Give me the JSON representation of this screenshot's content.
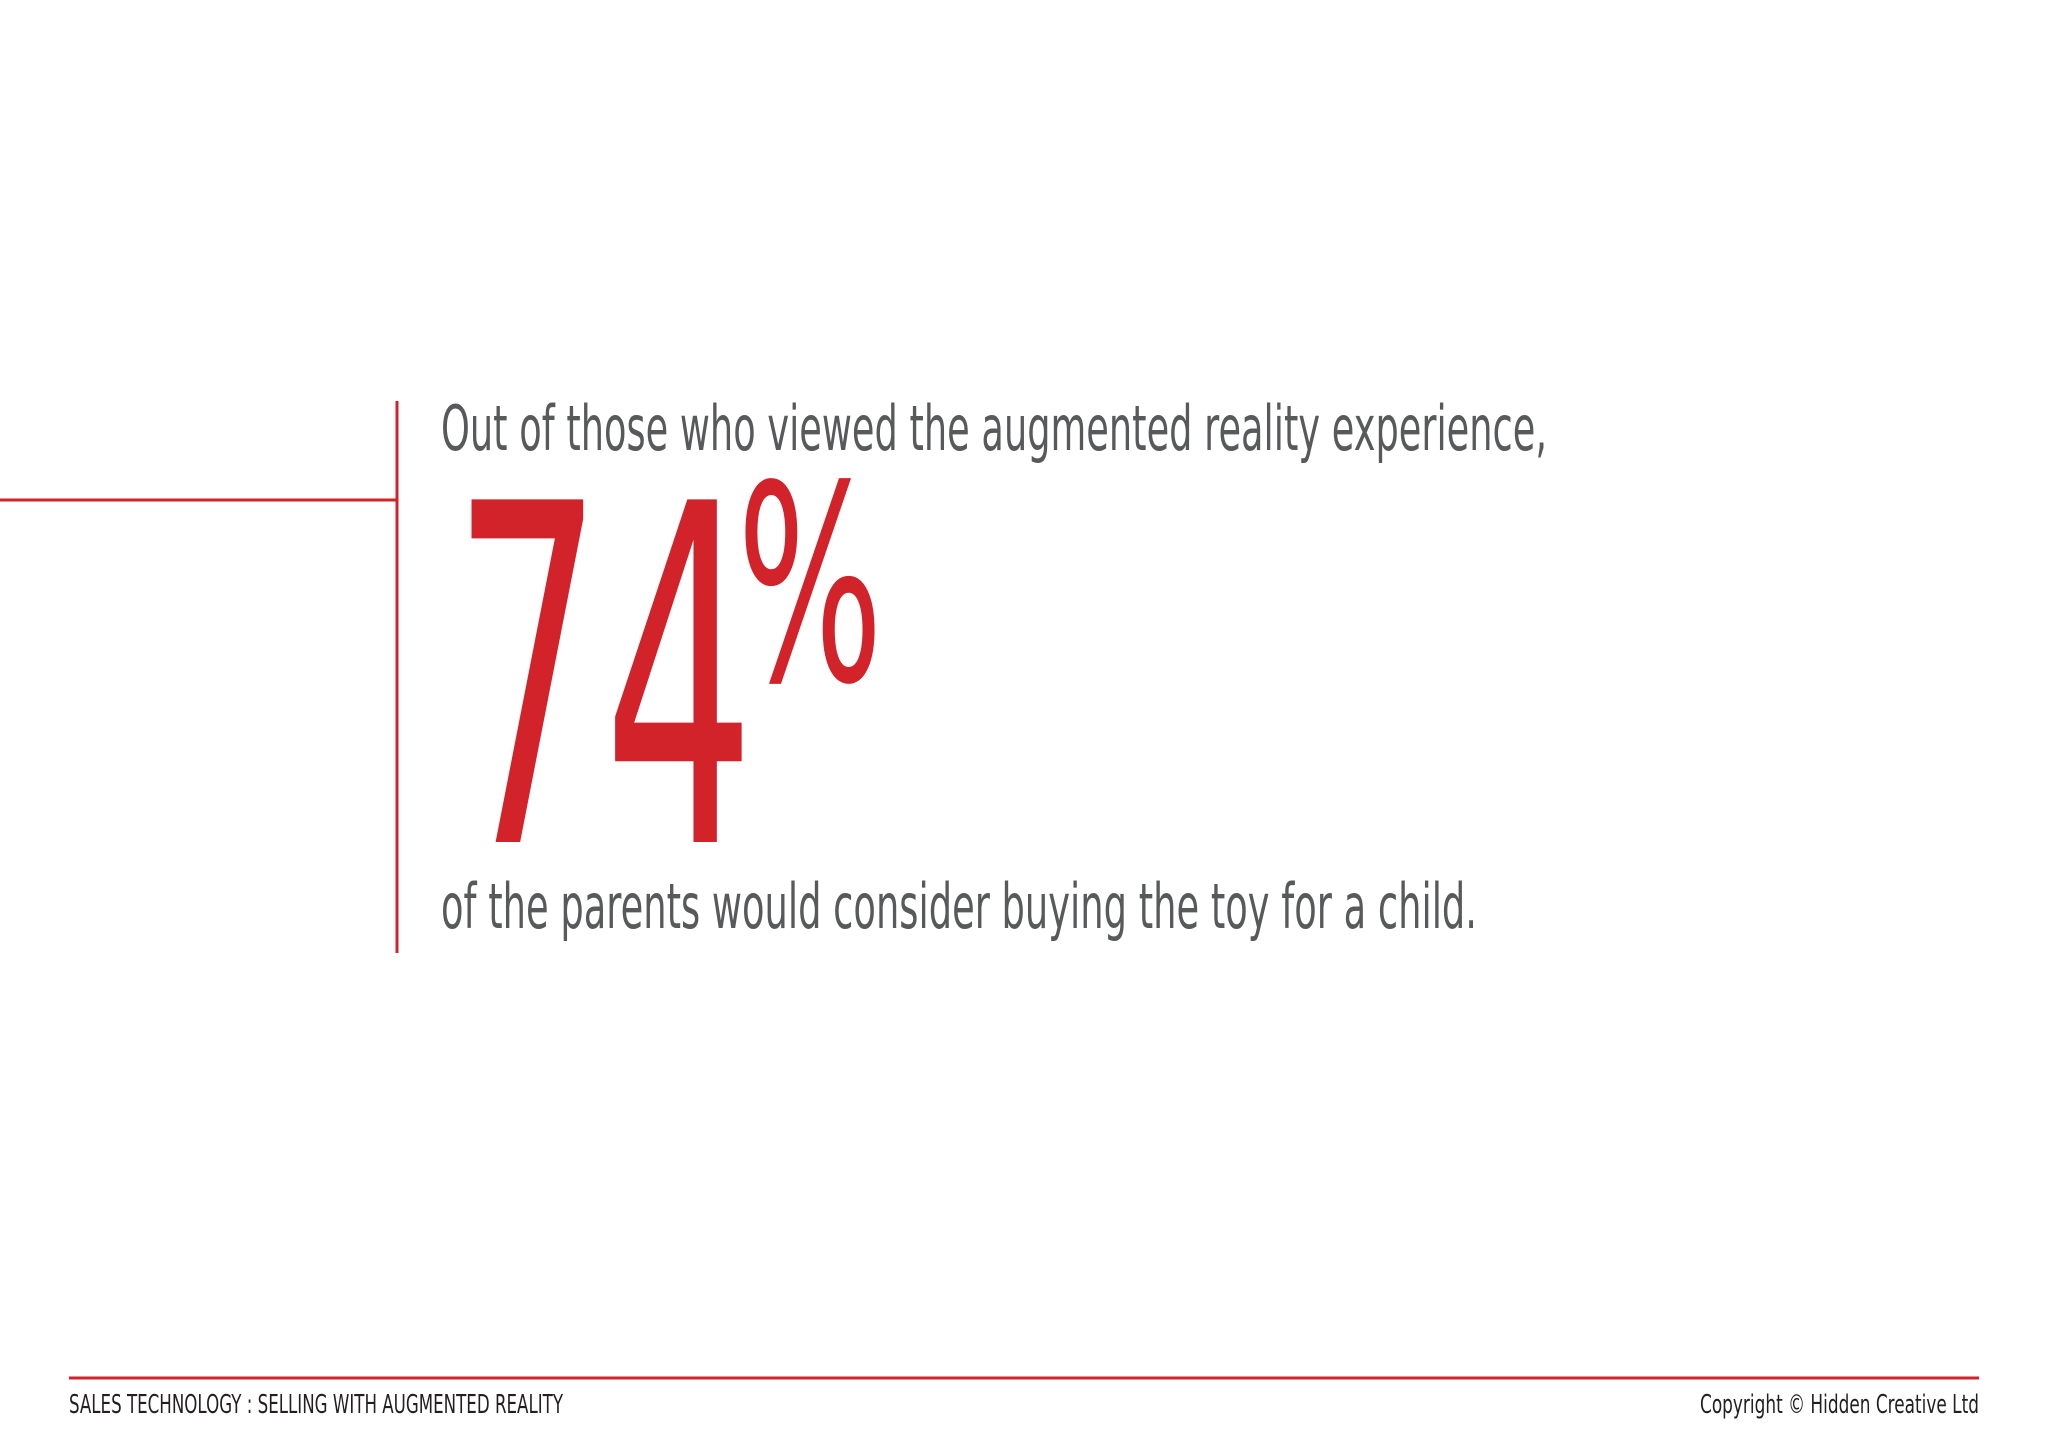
{
  "slide": {
    "intro": "Out of those who viewed the augmented reality experience,",
    "stat_value": 74,
    "stat_unit": "%",
    "outro": "of the parents would consider buying the toy for a child."
  },
  "footer": {
    "left": "SALES TECHNOLOGY : SELLING WITH AUGMENTED REALITY",
    "right": "Copyright © Hidden Creative Ltd"
  }
}
